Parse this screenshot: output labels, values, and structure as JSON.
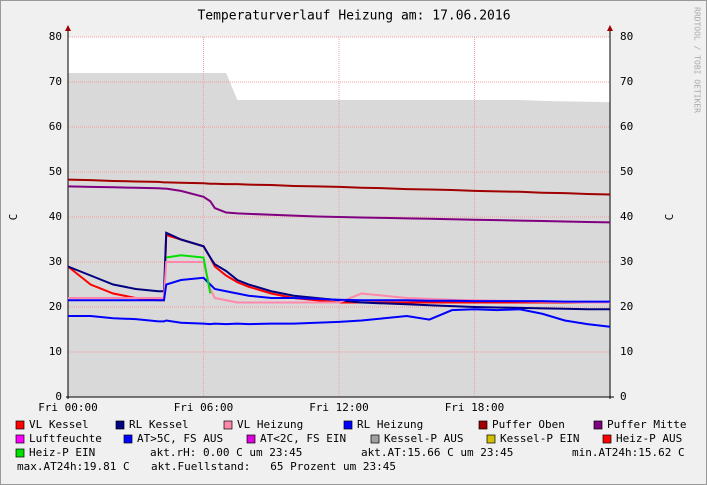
{
  "chart_data": {
    "type": "line",
    "title": "Temperaturverlauf Heizung am: 17.06.2016",
    "y_label": "C",
    "y2_label": "C",
    "watermark": "RRDTOOL / TOBI OETIKER",
    "x": [
      0,
      1,
      2,
      3,
      4,
      4.25,
      4.35,
      5,
      6,
      6.3,
      6.5,
      7,
      7.5,
      8,
      9,
      10,
      11,
      12,
      13,
      14,
      15,
      16,
      17,
      18,
      19,
      20,
      21,
      22,
      23,
      24
    ],
    "xlim": [
      0,
      24
    ],
    "xticks": [
      {
        "value": 0,
        "label": "Fri 00:00"
      },
      {
        "value": 6,
        "label": "Fri 06:00"
      },
      {
        "value": 12,
        "label": "Fri 12:00"
      },
      {
        "value": 18,
        "label": "Fri 18:00"
      }
    ],
    "ylim": [
      0,
      80
    ],
    "yticks": [
      0,
      10,
      20,
      30,
      40,
      50,
      60,
      70,
      80
    ],
    "y2lim": [
      0,
      80
    ],
    "y2ticks": [
      0,
      10,
      20,
      30,
      40,
      50,
      60,
      70,
      80
    ],
    "grid": true,
    "series": [
      {
        "name": "Kessel-P AUS",
        "color": "#a0a0a0",
        "style": "area",
        "values": [
          72,
          72,
          72,
          72,
          72,
          72,
          72,
          72,
          72,
          72,
          72,
          72,
          66,
          66,
          66,
          66,
          66,
          66,
          66,
          66,
          66,
          66,
          66,
          66,
          66,
          66,
          65.8,
          65.7,
          65.6,
          65.5
        ]
      },
      {
        "name": "VL Kessel",
        "color": "#ff0000",
        "values": [
          29,
          25,
          23,
          22,
          21.5,
          21.5,
          36,
          35,
          33.5,
          31,
          29,
          27,
          25.5,
          24.5,
          23,
          22,
          21.5,
          21,
          21,
          21,
          21,
          21,
          21,
          21,
          21,
          21,
          21,
          21,
          21,
          21
        ]
      },
      {
        "name": "RL Kessel",
        "color": "#000080",
        "values": [
          29,
          27,
          25,
          24,
          23.5,
          23.5,
          36.5,
          35,
          33.5,
          31,
          29.5,
          28,
          26,
          25,
          23.5,
          22.5,
          22,
          21.5,
          21,
          20.8,
          20.6,
          20.4,
          20.2,
          20,
          19.9,
          19.8,
          19.7,
          19.6,
          19.5,
          19.5
        ]
      },
      {
        "name": "VL Heizung",
        "color": "#ff88aa",
        "values": [
          22,
          22,
          22,
          22,
          22,
          22,
          30,
          30,
          30,
          24,
          22,
          21.5,
          21,
          21,
          21,
          21,
          21,
          21,
          23,
          22.5,
          22,
          21.8,
          21.6,
          21.5,
          21.4,
          21.3,
          21.2,
          21.1,
          21,
          21
        ]
      },
      {
        "name": "RL Heizung",
        "color": "#0000ff",
        "values": [
          21.5,
          21.5,
          21.5,
          21.5,
          21.5,
          21.5,
          25,
          26,
          26.5,
          25,
          24,
          23.5,
          23,
          22.5,
          22,
          22,
          21.8,
          21.6,
          21.5,
          21.5,
          21.5,
          21.4,
          21.4,
          21.3,
          21.3,
          21.3,
          21.3,
          21.2,
          21.2,
          21.2
        ]
      },
      {
        "name": "Puffer Oben",
        "color": "#a00000",
        "values": [
          48.3,
          48.2,
          48.0,
          47.9,
          47.8,
          47.7,
          47.7,
          47.6,
          47.5,
          47.4,
          47.4,
          47.3,
          47.3,
          47.2,
          47.1,
          46.9,
          46.8,
          46.7,
          46.5,
          46.4,
          46.2,
          46.1,
          46.0,
          45.8,
          45.7,
          45.6,
          45.4,
          45.3,
          45.1,
          45.0
        ]
      },
      {
        "name": "Puffer Mitte",
        "color": "#800080",
        "values": [
          46.8,
          46.7,
          46.6,
          46.5,
          46.4,
          46.3,
          46.3,
          45.8,
          44.5,
          43.5,
          42,
          41,
          40.8,
          40.7,
          40.5,
          40.3,
          40.1,
          40,
          39.9,
          39.8,
          39.7,
          39.6,
          39.5,
          39.4,
          39.3,
          39.2,
          39.1,
          39,
          38.9,
          38.8
        ]
      },
      {
        "name": "Luftfeuchte",
        "color": "#ff00ff",
        "values": [
          null,
          null,
          null,
          null,
          null,
          null,
          null,
          null,
          null,
          null,
          null,
          null,
          null,
          null,
          null,
          null,
          null,
          null,
          null,
          null,
          null,
          null,
          null,
          null,
          null,
          null,
          null,
          null,
          null,
          null
        ]
      },
      {
        "name": "AT>5C, FS AUS",
        "color": "#0000ff",
        "values": [
          18,
          18,
          17.5,
          17.3,
          16.8,
          16.8,
          17,
          16.5,
          16.3,
          16.2,
          16.3,
          16.2,
          16.3,
          16.2,
          16.3,
          16.3,
          16.5,
          16.7,
          17,
          17.5,
          18,
          17.2,
          19.3,
          19.5,
          19.3,
          19.5,
          18.5,
          17,
          16.2,
          15.6
        ]
      },
      {
        "name": "AT<2C, FS EIN",
        "color": "#e000e0",
        "values": [
          null,
          null,
          null,
          null,
          null,
          null,
          null,
          null,
          null,
          null,
          null,
          null,
          null,
          null,
          null,
          null,
          null,
          null,
          null,
          null,
          null,
          null,
          null,
          null,
          null,
          null,
          null,
          null,
          null,
          null
        ]
      },
      {
        "name": "Kessel-P EIN",
        "color": "#d0c000",
        "values": [
          null,
          null,
          null,
          null,
          null,
          null,
          null,
          null,
          null,
          null,
          null,
          null,
          null,
          null,
          null,
          null,
          null,
          null,
          null,
          null,
          null,
          null,
          null,
          null,
          null,
          null,
          null,
          null,
          null,
          null
        ]
      },
      {
        "name": "Heiz-P AUS",
        "color": "#ff0000",
        "values": [
          null,
          null,
          null,
          null,
          null,
          null,
          null,
          null,
          null,
          null,
          null,
          null,
          null,
          null,
          null,
          null,
          null,
          null,
          null,
          null,
          null,
          null,
          null,
          null,
          null,
          null,
          null,
          null,
          null,
          null
        ]
      },
      {
        "name": "Heiz-P EIN",
        "color": "#00e000",
        "values": [
          null,
          null,
          null,
          null,
          null,
          null,
          31,
          31.5,
          31,
          23,
          null,
          null,
          null,
          null,
          null,
          null,
          null,
          null,
          null,
          null,
          null,
          null,
          null,
          null,
          null,
          null,
          null,
          null,
          null,
          null
        ]
      }
    ],
    "legend_order": [
      "VL Kessel",
      "RL Kessel",
      "VL Heizung",
      "RL Heizung",
      "Puffer Oben",
      "Puffer Mitte",
      "Luftfeuchte",
      "AT>5C, FS AUS",
      "AT<2C, FS EIN",
      "Kessel-P AUS",
      "Kessel-P EIN",
      "Heiz-P AUS",
      "Heiz-P EIN"
    ],
    "annotations": [
      "akt.rH: 0.00 C um 23:45",
      "akt.AT:15.66 C um 23:45",
      "min.AT24h:15.62 C",
      "max.AT24h:19.81 C",
      "akt.Fuellstand:   65 Prozent um 23:45"
    ]
  }
}
